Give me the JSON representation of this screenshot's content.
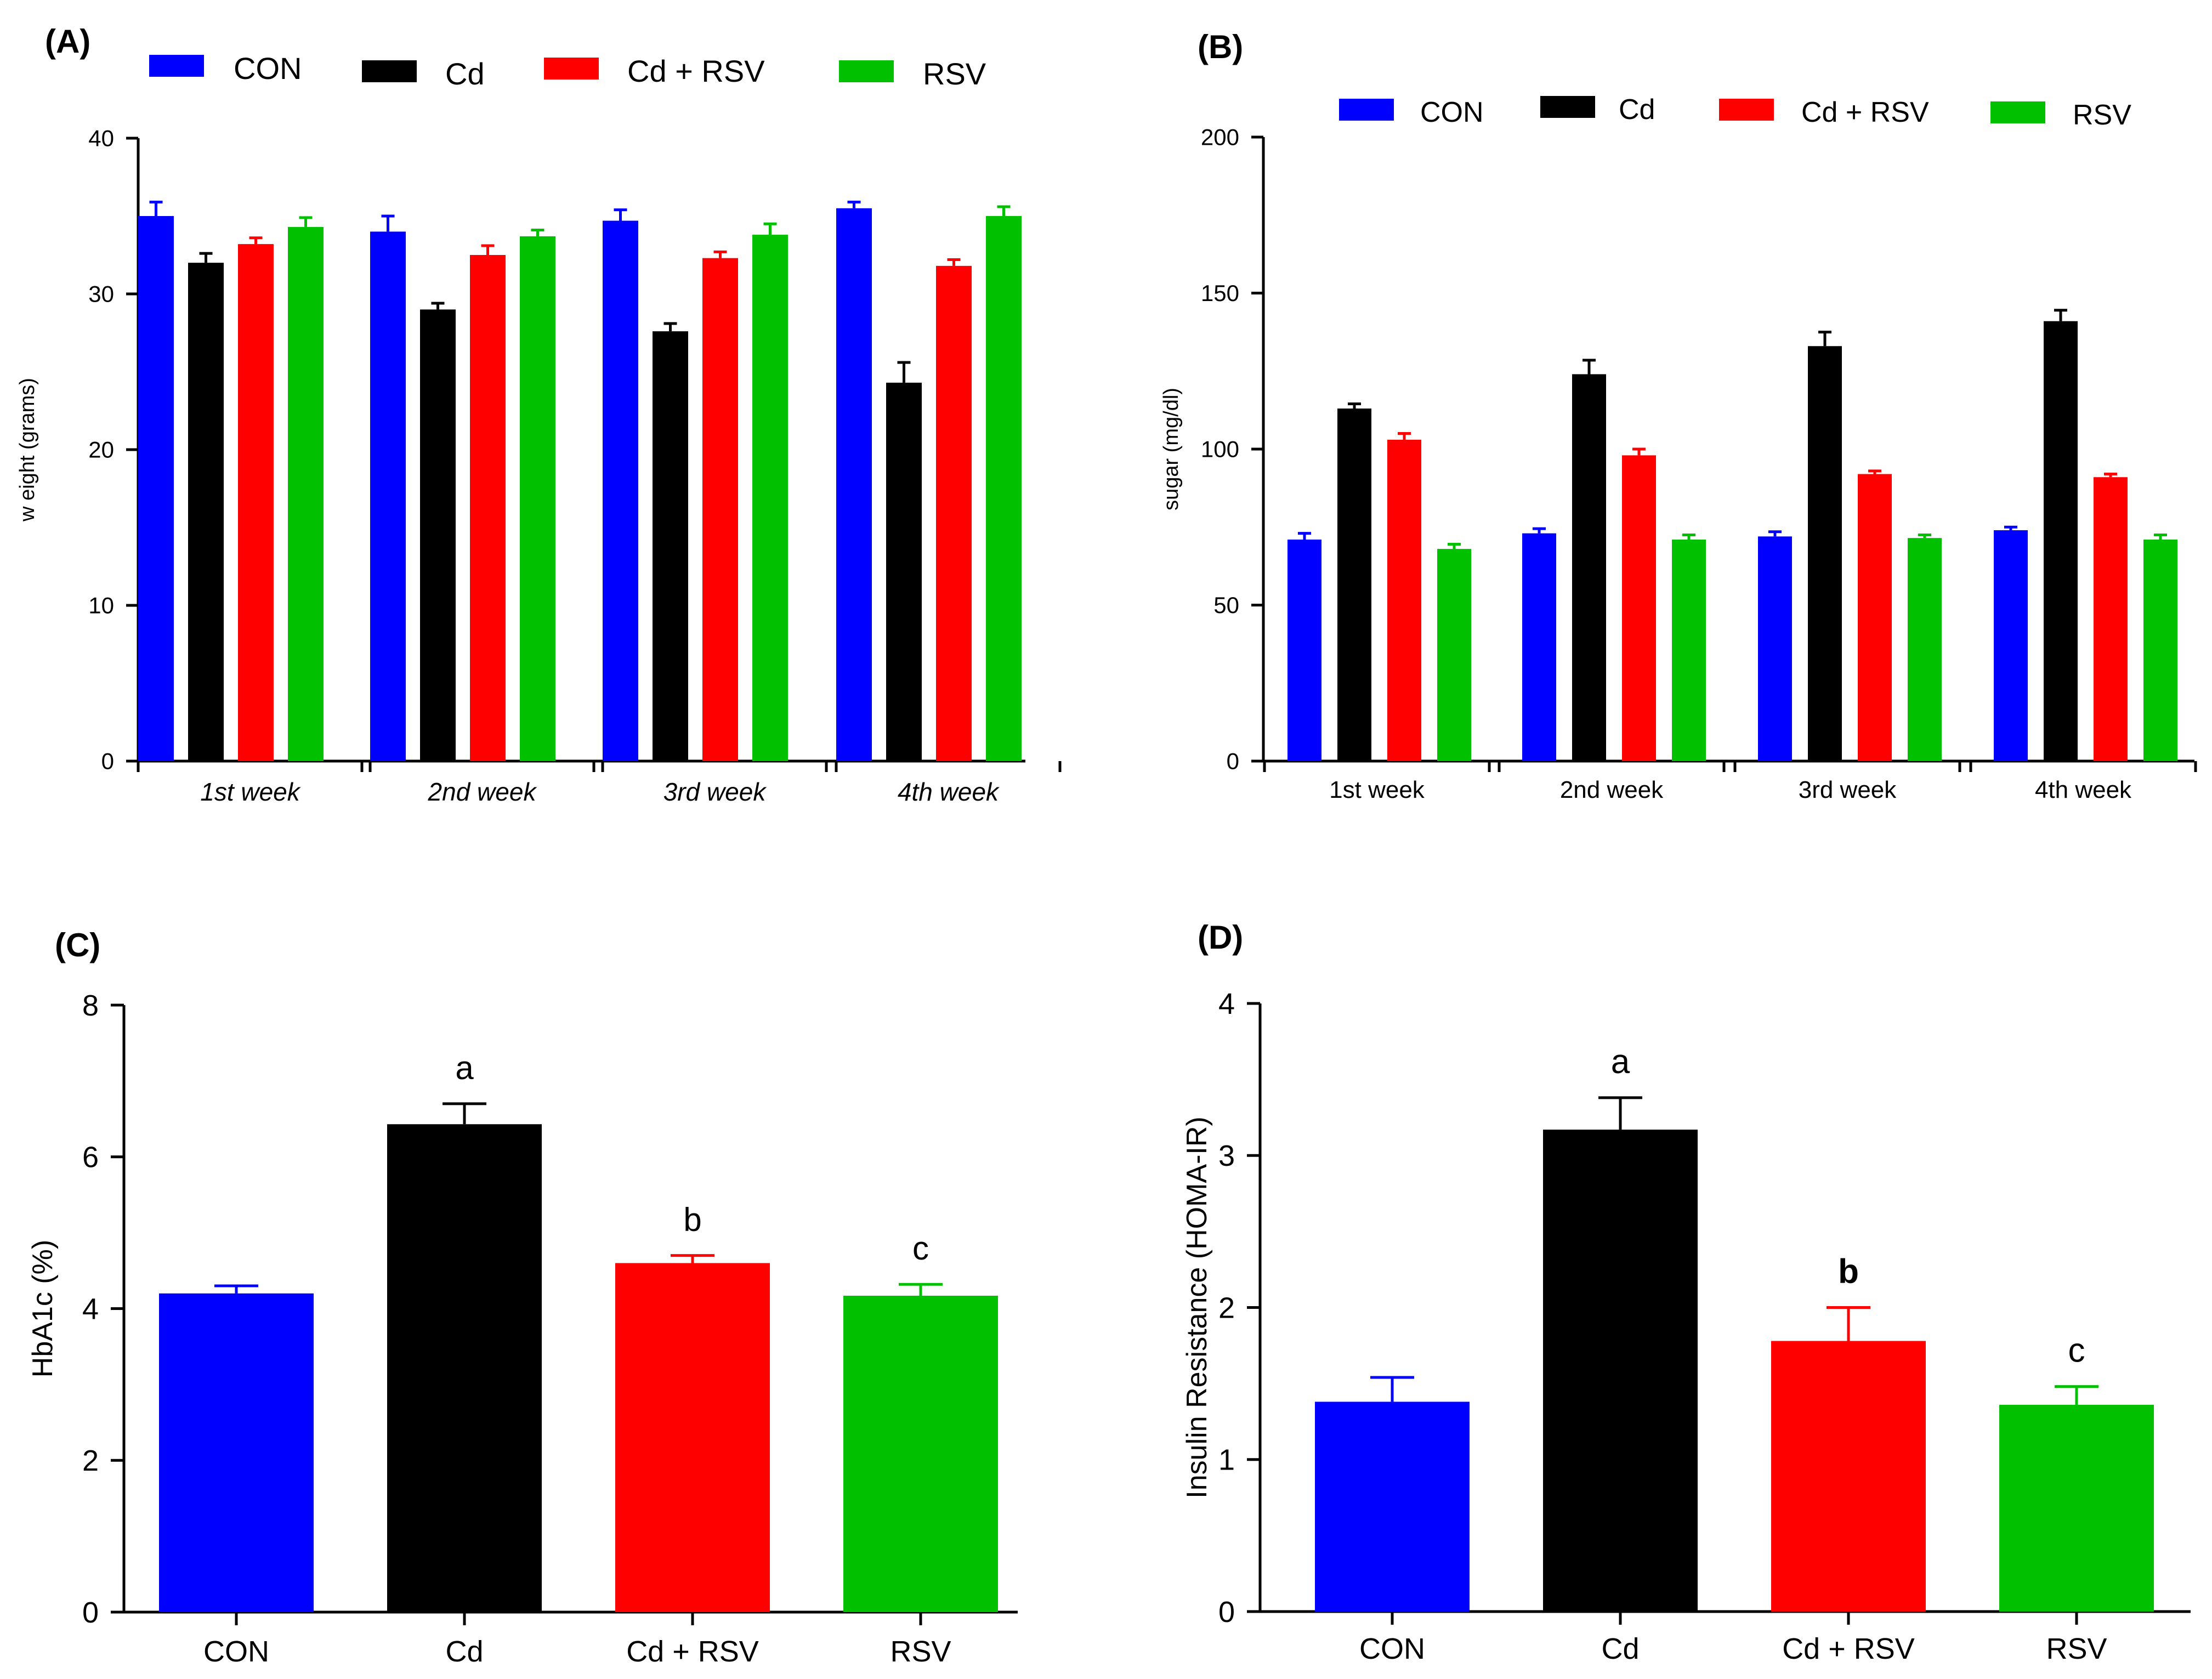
{
  "colors": {
    "CON": "#0000ff",
    "Cd": "#000000",
    "Cd + RSV": "#ff0000",
    "RSV": "#00c000"
  },
  "chart_data": [
    {
      "id": "A",
      "panel_label": "(A)",
      "type": "bar",
      "title": "",
      "ylabel": "w eight (grams)",
      "xlabel": "",
      "ylim": [
        0,
        40
      ],
      "yticks": [
        0,
        10,
        20,
        30,
        40
      ],
      "grid": false,
      "legend": "top",
      "categories": [
        "1st week",
        "2nd week",
        "3rd week",
        "4th week"
      ],
      "series": [
        {
          "name": "CON",
          "values": [
            35.0,
            34.0,
            34.7,
            35.5
          ],
          "errors": [
            0.9,
            1.0,
            0.7,
            0.4
          ]
        },
        {
          "name": "Cd",
          "values": [
            32.0,
            29.0,
            27.6,
            24.3
          ],
          "errors": [
            0.6,
            0.4,
            0.5,
            1.3
          ]
        },
        {
          "name": "Cd + RSV",
          "values": [
            33.2,
            32.5,
            32.3,
            31.8
          ],
          "errors": [
            0.4,
            0.6,
            0.4,
            0.4
          ]
        },
        {
          "name": "RSV",
          "values": [
            34.3,
            33.7,
            33.8,
            35.0
          ],
          "errors": [
            0.6,
            0.4,
            0.7,
            0.6
          ]
        }
      ]
    },
    {
      "id": "B",
      "panel_label": "(B)",
      "type": "bar",
      "title": "",
      "ylabel": "sugar (mg/dl)",
      "xlabel": "",
      "ylim": [
        0,
        200
      ],
      "yticks": [
        0,
        50,
        100,
        150,
        200
      ],
      "grid": false,
      "legend": "top",
      "categories": [
        "1st week",
        "2nd week",
        "3rd week",
        "4th week"
      ],
      "series": [
        {
          "name": "CON",
          "values": [
            71,
            73,
            72,
            74
          ],
          "errors": [
            2,
            1.5,
            1.5,
            1
          ]
        },
        {
          "name": "Cd",
          "values": [
            113,
            124,
            133,
            141
          ],
          "errors": [
            1.5,
            4.5,
            4.5,
            3.5
          ]
        },
        {
          "name": "Cd + RSV",
          "values": [
            103,
            98,
            92,
            91
          ],
          "errors": [
            2,
            2,
            1,
            1
          ]
        },
        {
          "name": "RSV",
          "values": [
            68,
            71,
            71.5,
            71
          ],
          "errors": [
            1.5,
            1.5,
            1,
            1.5
          ]
        }
      ]
    },
    {
      "id": "C",
      "panel_label": "(C)",
      "type": "bar",
      "title": "",
      "ylabel": "HbA1c (%)",
      "xlabel": "",
      "ylim": [
        0,
        8
      ],
      "yticks": [
        0,
        2,
        4,
        6,
        8
      ],
      "grid": false,
      "categories": [
        "CON",
        "Cd",
        "Cd + RSV",
        "RSV"
      ],
      "values": [
        4.2,
        6.43,
        4.6,
        4.17
      ],
      "errors": [
        0.1,
        0.27,
        0.1,
        0.15
      ],
      "annotations": [
        "",
        "a",
        "b",
        "c"
      ]
    },
    {
      "id": "D",
      "panel_label": "(D)",
      "type": "bar",
      "title": "",
      "ylabel": "Insulin Resistance (HOMA-IR)",
      "xlabel": "",
      "ylim": [
        0,
        4
      ],
      "yticks": [
        0,
        1,
        2,
        3,
        4
      ],
      "grid": false,
      "categories": [
        "CON",
        "Cd",
        "Cd + RSV",
        "RSV"
      ],
      "values": [
        1.38,
        3.17,
        1.78,
        1.36
      ],
      "errors": [
        0.16,
        0.21,
        0.22,
        0.12
      ],
      "annotations": [
        "",
        "a",
        "b",
        "c"
      ]
    }
  ]
}
